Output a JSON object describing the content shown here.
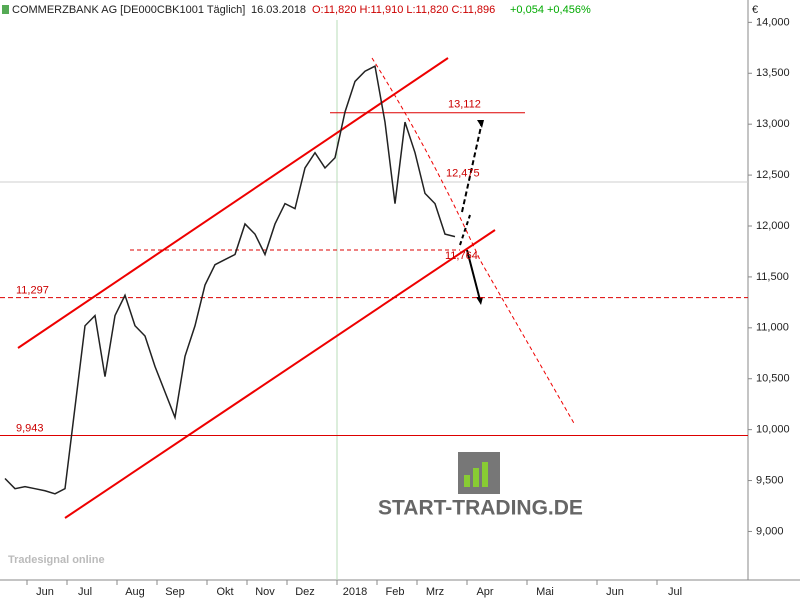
{
  "chart_data": {
    "type": "line",
    "header": {
      "name": "COMMERZBANK AG [DE000CBK1001  Täglich]",
      "date": "16.03.2018",
      "ohlc": "O:11,820 H:11,910 L:11,820 C:11,896",
      "change": "+0,054 +0,456%"
    },
    "currency": "€",
    "categories": [
      null,
      null,
      null,
      null,
      "Jun",
      null,
      null,
      null,
      "Jul",
      null,
      null,
      null,
      null,
      "Aug",
      null,
      null,
      null,
      "Sep",
      null,
      null,
      null,
      null,
      "Okt",
      null,
      null,
      null,
      "Nov",
      null,
      null,
      null,
      "Dez",
      null,
      null,
      null,
      null,
      "2018",
      null,
      null,
      null,
      "Feb",
      null,
      null,
      null,
      "Mrz",
      null,
      null,
      null,
      null,
      "Apr",
      null,
      null,
      null,
      null,
      null,
      "Mai",
      null,
      null,
      null,
      null,
      null,
      null,
      "Jun",
      null,
      null,
      null,
      null,
      null,
      "Jul",
      null,
      null,
      null,
      null,
      null,
      null
    ],
    "series": [
      {
        "name": "COMMERZBANK AG",
        "color": "#222222",
        "values": [
          9520,
          9420,
          9440,
          9420,
          9400,
          9370,
          9420,
          10220,
          11020,
          11120,
          10520,
          11120,
          11320,
          11020,
          10920,
          10620,
          10370,
          10120,
          10720,
          11020,
          11420,
          11620,
          11670,
          11720,
          12020,
          11920,
          11720,
          12020,
          12220,
          12170,
          12570,
          12720,
          12570,
          12670,
          13120,
          13420,
          13520,
          13570,
          13020,
          12220,
          13020,
          12720,
          12320,
          12220,
          11920,
          11896,
          null,
          null,
          null,
          null,
          null,
          null,
          null,
          null,
          null,
          null,
          null,
          null,
          null,
          null,
          null,
          null,
          null,
          null,
          null,
          null,
          null,
          null,
          null,
          null,
          null,
          null,
          null,
          null
        ]
      }
    ],
    "levels": [
      {
        "value": 13112,
        "label": "13,112"
      },
      {
        "value": 12475,
        "label": "12,475"
      },
      {
        "value": 11764,
        "label": "11,764"
      },
      {
        "value": 11297,
        "label": "11,297"
      },
      {
        "value": 9943,
        "label": "9,943"
      }
    ],
    "ylim": [
      8700,
      14200
    ],
    "yticks": [
      {
        "value": 9000,
        "label": "9,000"
      },
      {
        "value": 9500,
        "label": "9,500"
      },
      {
        "value": 10000,
        "label": "10,000"
      },
      {
        "value": 10500,
        "label": "10,500"
      },
      {
        "value": 11000,
        "label": "11,000"
      },
      {
        "value": 11500,
        "label": "11,500"
      },
      {
        "value": 12000,
        "label": "12,000"
      },
      {
        "value": 12500,
        "label": "12,500"
      },
      {
        "value": 13000,
        "label": "13,000"
      },
      {
        "value": 13500,
        "label": "13,500"
      },
      {
        "value": 14000,
        "label": "14,000"
      }
    ],
    "watermark": "START-TRADING.DE",
    "logo": "Tradesignal online"
  }
}
